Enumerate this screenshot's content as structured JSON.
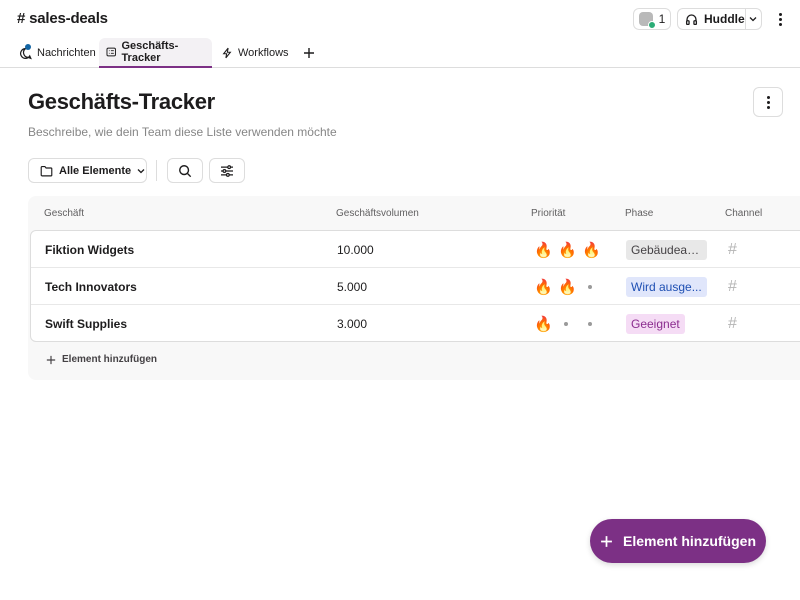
{
  "header": {
    "channel_title": "# sales-deals",
    "member_count": "1",
    "huddle_label": "Huddle"
  },
  "tabs": [
    {
      "label": "Nachrichten",
      "icon": "message-icon",
      "active": false,
      "has_notification": true
    },
    {
      "label": "Geschäfts-Tracker",
      "icon": "list-icon",
      "active": true
    },
    {
      "label": "Workflows",
      "icon": "lightning-icon",
      "active": false
    }
  ],
  "page": {
    "title": "Geschäfts-Tracker",
    "description": "Beschreibe, wie dein Team diese Liste verwenden möchte"
  },
  "toolbar": {
    "filter_label": "Alle Elemente"
  },
  "table": {
    "columns": [
      "Geschäft",
      "Geschäftsvolumen",
      "Priorität",
      "Phase",
      "Channel"
    ],
    "rows": [
      {
        "name": "Fiktion Widgets",
        "volume": "10.000",
        "priority": 3,
        "phase": "Gebäudean...",
        "channel": "#"
      },
      {
        "name": "Tech Innovators",
        "volume": "5.000",
        "priority": 2,
        "phase": "Wird ausge...",
        "channel": "#"
      },
      {
        "name": "Swift Supplies",
        "volume": "3.000",
        "priority": 1,
        "phase": "Geeignet",
        "channel": "#"
      }
    ],
    "add_row_label": "Element hinzufügen"
  },
  "phase_colors": {
    "Gebäudean...": {
      "bg": "#e8e8e8",
      "fg": "#454245"
    },
    "Wird ausge...": {
      "bg": "#e0e6fb",
      "fg": "#1e4fb3"
    },
    "Geeignet": {
      "bg": "#f5dcf5",
      "fg": "#8b2c8f"
    }
  },
  "fab": {
    "label": "Element hinzufügen"
  },
  "colors": {
    "accent": "#7c3085",
    "notification": "#1264a3",
    "presence": "#2bac76"
  }
}
